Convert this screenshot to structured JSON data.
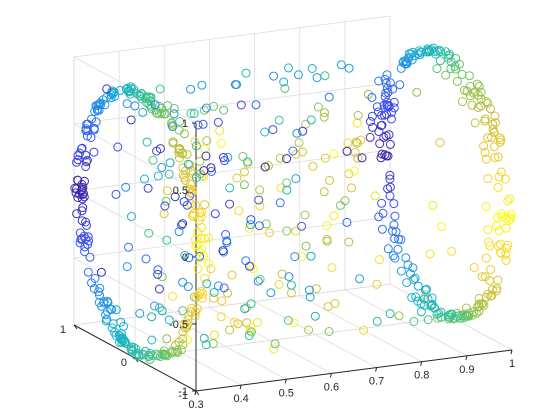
{
  "chart_data": {
    "type": "scatter",
    "dimensions": 3,
    "title": "",
    "xlabel": "",
    "ylabel": "",
    "zlabel": "",
    "xlim": [
      0.3,
      1
    ],
    "ylim": [
      -1,
      1
    ],
    "zlim": [
      -1,
      1
    ],
    "x_ticks": [
      "0.3",
      "0.4",
      "0.5",
      "0.6",
      "0.7",
      "0.8",
      "0.9",
      "1"
    ],
    "y_ticks": [
      "-1",
      "0",
      "1"
    ],
    "z_ticks": [
      "-1",
      "-0.5",
      "0",
      "0.5",
      "1"
    ],
    "grid": true,
    "marker": "open circle",
    "colormap": "parula",
    "colormap_stops": [
      "#3e26a8",
      "#3d50f1",
      "#2a8aeb",
      "#16b1cd",
      "#2cbfa0",
      "#79c45e",
      "#c5bf3a",
      "#f6cc2d",
      "#f9fb15"
    ],
    "point_count_description": "about 900 points forming a curved swept surface",
    "series": [
      {
        "shape": "swept arc surface",
        "x_range": [
          0.3,
          1
        ],
        "y_range": [
          -1,
          1
        ],
        "z_range": [
          -1,
          1
        ]
      }
    ]
  }
}
